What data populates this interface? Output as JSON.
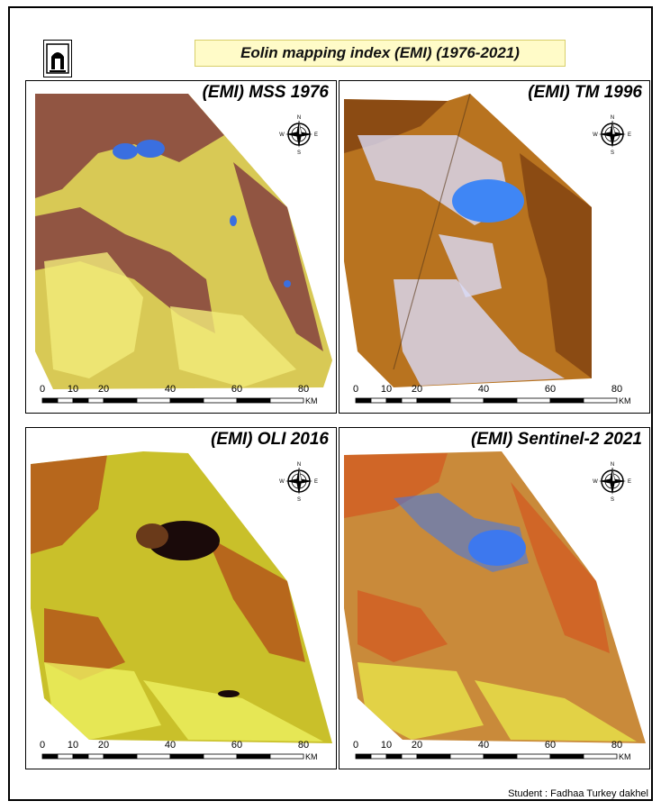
{
  "title": "Eolin mapping index (EMI) (1976-2021)",
  "credit": "Student : Fadhaa Turkey dakhel",
  "scale_ticks": [
    "0",
    "10",
    "20",
    "40",
    "60",
    "80"
  ],
  "scale_unit": "KM",
  "compass": {
    "n": "N",
    "s": "S",
    "e": "E",
    "w": "W"
  },
  "panels": [
    {
      "title": "(EMI) MSS 1976",
      "base": "#d8c955",
      "dark": "#7a2d3c",
      "light": "#f2ec7a",
      "water": "#3a6fe0"
    },
    {
      "title": "(EMI) TM 1996",
      "base": "#b8731f",
      "dark": "#7c3e10",
      "light": "#d9dbf7",
      "water": "#3f86f5"
    },
    {
      "title": "(EMI) OLI 2016",
      "base": "#c9c02a",
      "dark": "#b04a18",
      "light": "#eef060",
      "water": "#1a0a0a"
    },
    {
      "title": "(EMI) Sentinel-2 2021",
      "base": "#c98a3a",
      "dark": "#d25a22",
      "light": "#e8e44a",
      "water": "#3d78ee"
    }
  ],
  "logo": "university-logo"
}
